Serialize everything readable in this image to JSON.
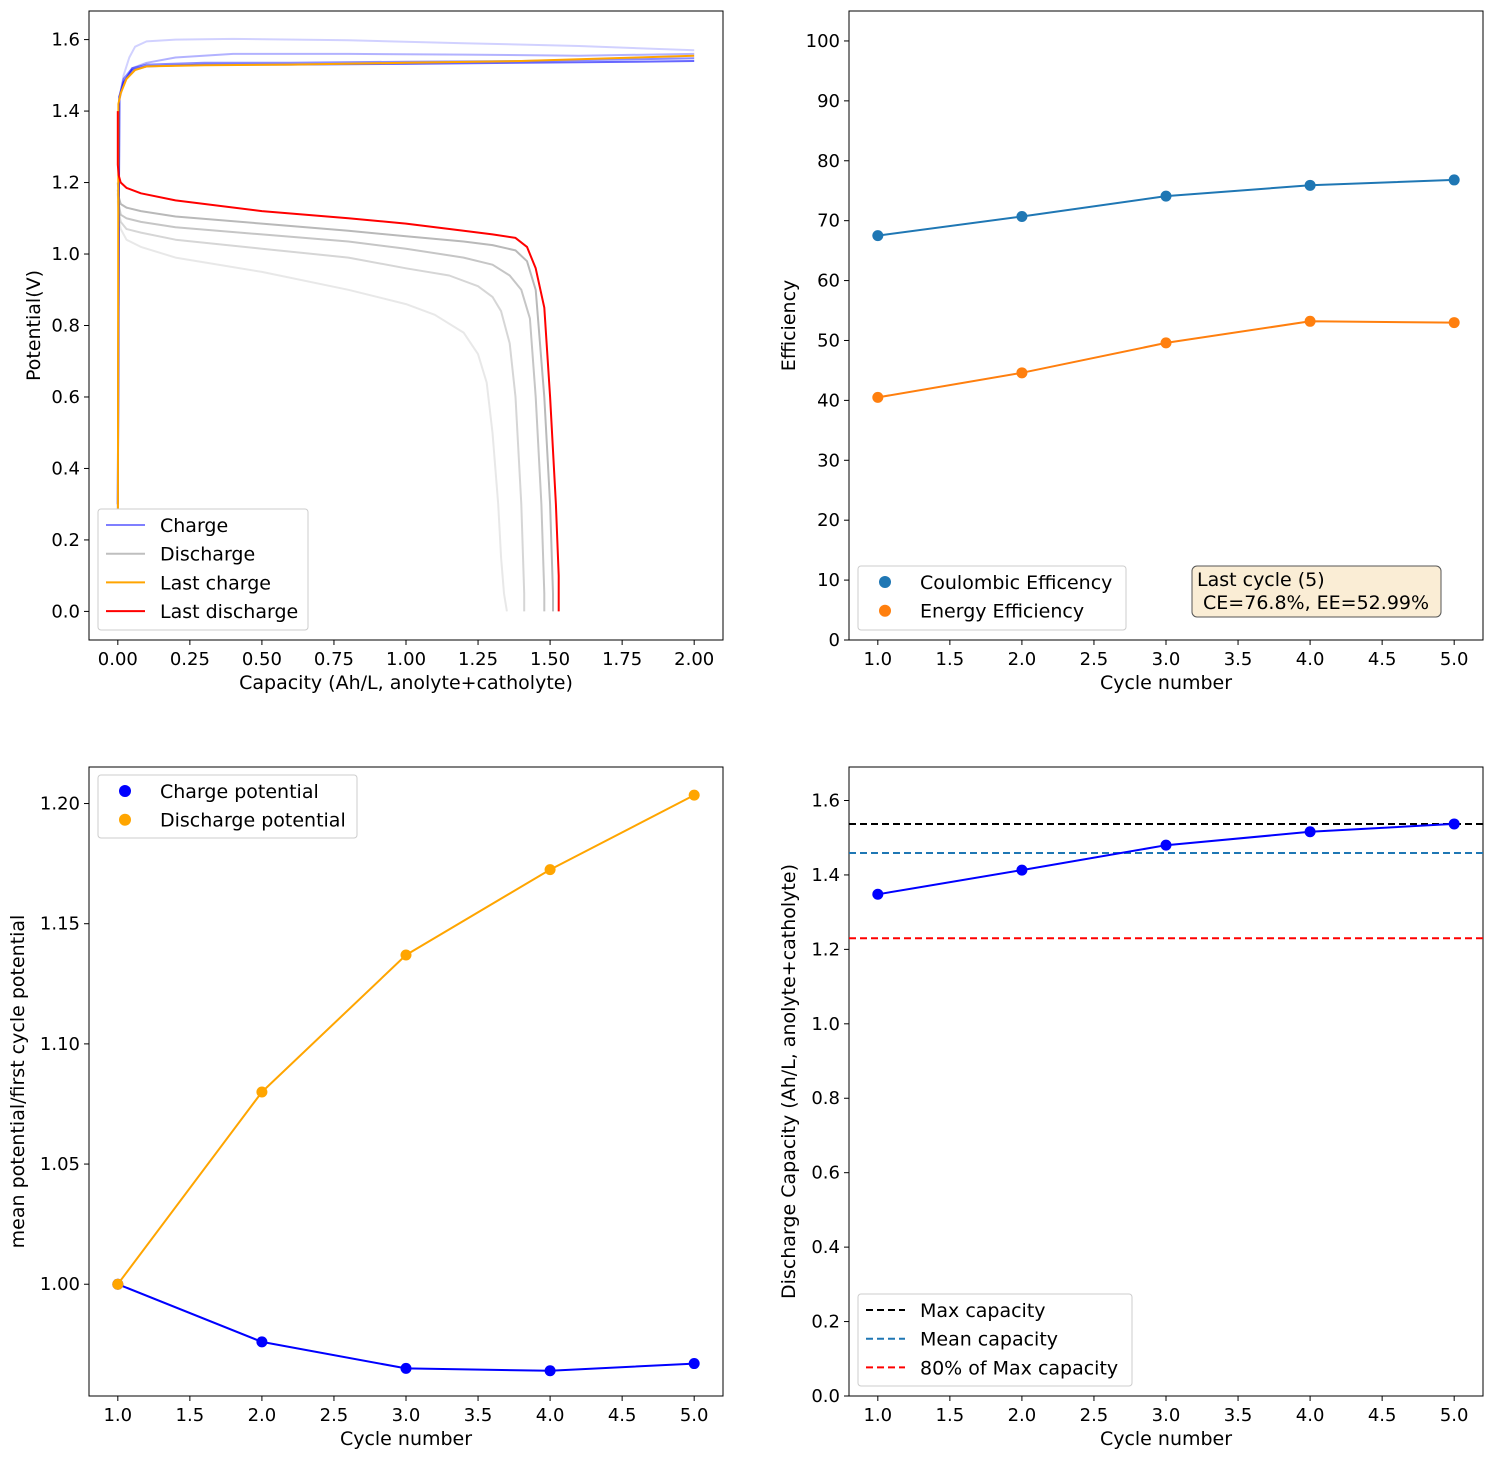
{
  "chart_data": [
    {
      "type": "line",
      "xlabel": "Capacity (Ah/L, anolyte+catholyte)",
      "ylabel": "Potential(V)",
      "xlim": [
        -0.1,
        2.1
      ],
      "ylim": [
        -0.08,
        1.68
      ],
      "xticks": [
        "0.00",
        "0.25",
        "0.50",
        "0.75",
        "1.00",
        "1.25",
        "1.50",
        "1.75",
        "2.00"
      ],
      "yticks": [
        "0.0",
        "0.2",
        "0.4",
        "0.6",
        "0.8",
        "1.0",
        "1.2",
        "1.4",
        "1.6"
      ],
      "legend": {
        "position": "lower left",
        "entries": [
          "Charge",
          "Discharge",
          "Last charge",
          "Last discharge"
        ]
      },
      "series": [
        {
          "name": "Charge",
          "kind": "charge",
          "cycle": 1,
          "color": "#0000ff",
          "opacity": 0.18,
          "x": [
            0,
            0.005,
            0.02,
            0.04,
            0.06,
            0.1,
            0.2,
            0.4,
            0.8,
            1.2,
            1.6,
            2.0
          ],
          "y": [
            0.2,
            1.43,
            1.5,
            1.55,
            1.58,
            1.595,
            1.6,
            1.602,
            1.598,
            1.59,
            1.582,
            1.57
          ]
        },
        {
          "name": "Charge",
          "kind": "charge",
          "cycle": 2,
          "color": "#0000ff",
          "opacity": 0.3,
          "x": [
            0,
            0.005,
            0.02,
            0.05,
            0.1,
            0.2,
            0.4,
            0.8,
            1.2,
            1.6,
            2.0
          ],
          "y": [
            0.25,
            1.43,
            1.48,
            1.52,
            1.535,
            1.55,
            1.56,
            1.56,
            1.558,
            1.555,
            1.56
          ]
        },
        {
          "name": "Charge",
          "kind": "charge",
          "cycle": 3,
          "color": "#0000ff",
          "opacity": 0.45,
          "x": [
            0,
            0.005,
            0.02,
            0.05,
            0.1,
            0.3,
            0.6,
            1.0,
            1.4,
            1.8,
            2.0
          ],
          "y": [
            0.3,
            1.44,
            1.49,
            1.52,
            1.53,
            1.535,
            1.535,
            1.538,
            1.54,
            1.545,
            1.548
          ]
        },
        {
          "name": "Charge",
          "kind": "charge",
          "cycle": 4,
          "color": "#0000ff",
          "opacity": 0.6,
          "x": [
            0,
            0.005,
            0.02,
            0.05,
            0.1,
            0.3,
            0.6,
            1.0,
            1.4,
            1.8,
            2.0
          ],
          "y": [
            0.3,
            1.44,
            1.48,
            1.515,
            1.525,
            1.53,
            1.53,
            1.532,
            1.535,
            1.538,
            1.54
          ]
        },
        {
          "name": "Discharge",
          "kind": "discharge",
          "cycle": 1,
          "color": "#808080",
          "opacity": 0.18,
          "x": [
            0.0,
            0.003,
            0.01,
            0.03,
            0.08,
            0.2,
            0.5,
            0.8,
            1.0,
            1.1,
            1.2,
            1.25,
            1.28,
            1.3,
            1.32,
            1.33,
            1.34,
            1.35
          ],
          "y": [
            1.15,
            1.1,
            1.07,
            1.04,
            1.02,
            0.99,
            0.95,
            0.9,
            0.86,
            0.83,
            0.78,
            0.72,
            0.64,
            0.5,
            0.3,
            0.15,
            0.05,
            0.0
          ]
        },
        {
          "name": "Discharge",
          "kind": "discharge",
          "cycle": 2,
          "color": "#808080",
          "opacity": 0.32,
          "x": [
            0.0,
            0.003,
            0.01,
            0.03,
            0.08,
            0.2,
            0.5,
            0.8,
            1.0,
            1.15,
            1.25,
            1.3,
            1.33,
            1.36,
            1.38,
            1.4,
            1.41,
            1.41
          ],
          "y": [
            1.17,
            1.12,
            1.09,
            1.07,
            1.06,
            1.04,
            1.015,
            0.99,
            0.96,
            0.94,
            0.91,
            0.88,
            0.84,
            0.75,
            0.6,
            0.3,
            0.05,
            0.0
          ]
        },
        {
          "name": "Discharge",
          "kind": "discharge",
          "cycle": 3,
          "color": "#808080",
          "opacity": 0.45,
          "x": [
            0.0,
            0.003,
            0.01,
            0.03,
            0.08,
            0.2,
            0.5,
            0.8,
            1.0,
            1.2,
            1.3,
            1.36,
            1.4,
            1.43,
            1.45,
            1.47,
            1.48,
            1.48
          ],
          "y": [
            1.18,
            1.14,
            1.11,
            1.1,
            1.09,
            1.075,
            1.055,
            1.035,
            1.015,
            0.99,
            0.97,
            0.94,
            0.9,
            0.82,
            0.6,
            0.3,
            0.05,
            0.0
          ]
        },
        {
          "name": "Discharge",
          "kind": "discharge",
          "cycle": 4,
          "color": "#808080",
          "opacity": 0.55,
          "x": [
            0.0,
            0.003,
            0.01,
            0.03,
            0.08,
            0.2,
            0.5,
            0.8,
            1.0,
            1.2,
            1.3,
            1.38,
            1.42,
            1.45,
            1.48,
            1.5,
            1.51,
            1.51
          ],
          "y": [
            1.2,
            1.16,
            1.14,
            1.13,
            1.12,
            1.105,
            1.085,
            1.065,
            1.05,
            1.035,
            1.025,
            1.01,
            0.98,
            0.9,
            0.6,
            0.3,
            0.05,
            0.0
          ]
        },
        {
          "name": "Last charge",
          "kind": "last-charge",
          "cycle": 5,
          "color": "#ffa500",
          "opacity": 1,
          "x": [
            0,
            0.002,
            0.01,
            0.03,
            0.06,
            0.1,
            0.3,
            0.6,
            1.0,
            1.4,
            1.8,
            2.0
          ],
          "y": [
            0.0,
            1.42,
            1.45,
            1.49,
            1.515,
            1.525,
            1.528,
            1.53,
            1.535,
            1.54,
            1.55,
            1.555
          ]
        },
        {
          "name": "Last discharge",
          "kind": "last-discharge",
          "cycle": 5,
          "color": "#ff0000",
          "opacity": 1,
          "x": [
            0.0,
            0.0,
            0.003,
            0.01,
            0.03,
            0.08,
            0.2,
            0.5,
            0.8,
            1.0,
            1.2,
            1.3,
            1.38,
            1.42,
            1.45,
            1.48,
            1.5,
            1.52,
            1.53,
            1.53
          ],
          "y": [
            1.4,
            1.25,
            1.22,
            1.2,
            1.185,
            1.17,
            1.15,
            1.12,
            1.1,
            1.085,
            1.065,
            1.055,
            1.045,
            1.02,
            0.96,
            0.85,
            0.6,
            0.3,
            0.1,
            0.0
          ]
        }
      ]
    },
    {
      "type": "line",
      "xlabel": "Cycle number",
      "ylabel": "Efficiency",
      "xlim": [
        0.8,
        5.2
      ],
      "ylim": [
        0,
        105
      ],
      "xticks": [
        "1.0",
        "1.5",
        "2.0",
        "2.5",
        "3.0",
        "3.5",
        "4.0",
        "4.5",
        "5.0"
      ],
      "yticks": [
        "0",
        "10",
        "20",
        "30",
        "40",
        "50",
        "60",
        "70",
        "80",
        "90",
        "100"
      ],
      "legend": {
        "position": "lower left",
        "entries": [
          "Coulombic Efficency",
          "Energy Efficiency"
        ]
      },
      "annotation": {
        "line1": "Last cycle (5)",
        "line2": " CE=76.8%, EE=52.99%"
      },
      "x": [
        1,
        2,
        3,
        4,
        5
      ],
      "series": [
        {
          "name": "Coulombic Efficency",
          "color": "#1f77b4",
          "values": [
            67.5,
            70.7,
            74.1,
            75.9,
            76.8
          ]
        },
        {
          "name": "Energy Efficiency",
          "color": "#ff7f0e",
          "values": [
            40.5,
            44.6,
            49.6,
            53.2,
            52.99
          ]
        }
      ]
    },
    {
      "type": "line",
      "xlabel": "Cycle number",
      "ylabel": "mean potential/first cycle potential",
      "xlim": [
        0.8,
        5.2
      ],
      "ylim": [
        0.9535,
        1.2152
      ],
      "xticks": [
        "1.0",
        "1.5",
        "2.0",
        "2.5",
        "3.0",
        "3.5",
        "4.0",
        "4.5",
        "5.0"
      ],
      "yticks": [
        "1.00",
        "1.05",
        "1.10",
        "1.15",
        "1.20"
      ],
      "legend": {
        "position": "upper left",
        "entries": [
          "Charge potential",
          "Discharge potential"
        ]
      },
      "x": [
        1,
        2,
        3,
        4,
        5
      ],
      "series": [
        {
          "name": "Charge potential",
          "color": "#0000ff",
          "values": [
            1.0,
            0.976,
            0.965,
            0.964,
            0.967
          ]
        },
        {
          "name": "Discharge potential",
          "color": "#ffa500",
          "values": [
            1.0,
            1.08,
            1.137,
            1.1725,
            1.2035
          ]
        }
      ]
    },
    {
      "type": "line",
      "xlabel": "Cycle number",
      "ylabel": "Discharge Capacity (Ah/L, anolyte+catholyte)",
      "xlim": [
        0.8,
        5.2
      ],
      "ylim": [
        0,
        1.69
      ],
      "xticks": [
        "1.0",
        "1.5",
        "2.0",
        "2.5",
        "3.0",
        "3.5",
        "4.0",
        "4.5",
        "5.0"
      ],
      "yticks": [
        "0.0",
        "0.2",
        "0.4",
        "0.6",
        "0.8",
        "1.0",
        "1.2",
        "1.4",
        "1.6"
      ],
      "legend": {
        "position": "lower left",
        "entries": [
          "Max capacity",
          "Mean capacity",
          "80% of Max capacity"
        ]
      },
      "x": [
        1,
        2,
        3,
        4,
        5
      ],
      "series": [
        {
          "name": "Discharge Capacity",
          "color": "#0000ff",
          "values": [
            1.348,
            1.413,
            1.48,
            1.516,
            1.537
          ]
        }
      ],
      "hlines": [
        {
          "name": "Max capacity",
          "color": "#000000",
          "value": 1.537
        },
        {
          "name": "Mean capacity",
          "color": "#1f77b4",
          "value": 1.459
        },
        {
          "name": "80% of Max capacity",
          "color": "#ff0000",
          "value": 1.23
        }
      ]
    }
  ]
}
